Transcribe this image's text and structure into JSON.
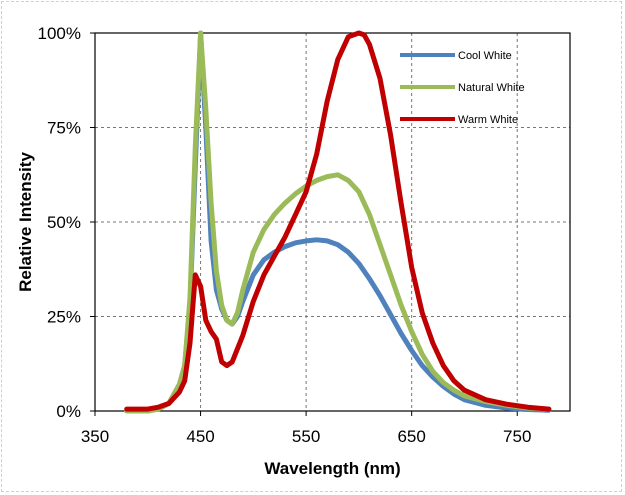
{
  "chart_data": {
    "type": "line",
    "title": "",
    "xlabel": "Wavelength (nm)",
    "ylabel": "Relative Intensity",
    "xlim": [
      350,
      800
    ],
    "ylim": [
      0,
      100
    ],
    "x_ticks": [
      350,
      450,
      550,
      650,
      750
    ],
    "y_ticks": [
      0,
      25,
      50,
      75,
      100
    ],
    "x_tick_labels": [
      "350",
      "450",
      "550",
      "650",
      "750"
    ],
    "y_tick_labels": [
      "0%",
      "25%",
      "50%",
      "75%",
      "100%"
    ],
    "grid": true,
    "grid_style": "dashed",
    "legend_position": "top-right",
    "series": [
      {
        "name": "Cool White",
        "color": "#4f81bd",
        "x": [
          380,
          400,
          410,
          420,
          430,
          435,
          440,
          445,
          450,
          455,
          460,
          465,
          470,
          475,
          480,
          485,
          490,
          500,
          510,
          520,
          530,
          540,
          550,
          560,
          570,
          580,
          590,
          600,
          610,
          620,
          630,
          640,
          650,
          660,
          670,
          680,
          690,
          700,
          720,
          740,
          760,
          780
        ],
        "y": [
          0,
          0,
          0.5,
          2,
          7,
          12,
          28,
          65,
          100,
          75,
          45,
          32,
          27,
          24,
          23,
          25,
          29,
          36,
          40,
          42,
          43.5,
          44.5,
          45,
          45.3,
          45,
          44,
          42,
          39,
          35,
          30.5,
          25.5,
          20.5,
          16,
          12,
          9,
          6.5,
          4.5,
          3,
          1.5,
          0.8,
          0.4,
          0.2
        ]
      },
      {
        "name": "Natural White",
        "color": "#9bbb59",
        "x": [
          380,
          400,
          410,
          420,
          430,
          435,
          440,
          445,
          450,
          455,
          460,
          465,
          470,
          475,
          480,
          485,
          490,
          500,
          510,
          520,
          530,
          540,
          550,
          560,
          570,
          580,
          590,
          600,
          610,
          620,
          630,
          640,
          650,
          660,
          670,
          680,
          690,
          700,
          720,
          740,
          760,
          780
        ],
        "y": [
          0,
          0,
          0.5,
          2,
          7,
          12,
          30,
          70,
          100,
          80,
          55,
          37,
          28,
          24,
          23,
          26,
          32,
          42,
          48,
          52,
          55,
          57.5,
          59.5,
          61,
          62,
          62.5,
          61,
          58,
          52,
          44,
          36,
          28,
          21,
          15,
          10.5,
          7.5,
          5.5,
          4,
          2.5,
          1.5,
          0.8,
          0.5
        ]
      },
      {
        "name": "Warm White",
        "color": "#c00000",
        "x": [
          380,
          400,
          410,
          420,
          430,
          435,
          440,
          445,
          450,
          455,
          460,
          465,
          470,
          475,
          480,
          490,
          500,
          510,
          520,
          530,
          540,
          550,
          560,
          570,
          580,
          590,
          600,
          605,
          610,
          620,
          630,
          640,
          650,
          660,
          670,
          680,
          690,
          700,
          720,
          740,
          760,
          780
        ],
        "y": [
          0.5,
          0.5,
          1,
          2,
          5,
          8,
          18,
          36,
          33,
          24,
          21,
          19,
          13,
          12,
          13,
          20,
          29,
          36,
          41,
          46,
          52,
          58,
          68,
          82,
          93,
          99,
          100,
          99.5,
          97,
          88,
          73,
          55,
          38,
          26,
          18,
          12,
          8,
          5.5,
          3,
          1.8,
          1,
          0.5
        ]
      }
    ]
  }
}
